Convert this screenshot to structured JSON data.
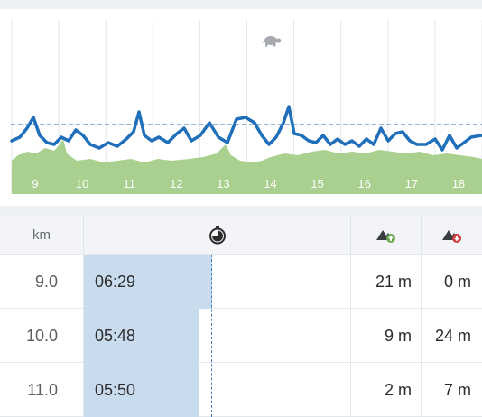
{
  "chart": {
    "km_labels": [
      "9",
      "10",
      "11",
      "12",
      "13",
      "14",
      "15",
      "16",
      "17",
      "18"
    ],
    "slow_icon": "turtle-icon",
    "colors": {
      "pace_line": "#1f6fba",
      "elevation_fill": "#a9d08f",
      "avg_line": "#2f6ea8",
      "grid": "#e4e6e9"
    }
  },
  "table": {
    "header": {
      "km_label": "km",
      "pace_icon": "stopwatch-icon",
      "ascent_icon": "mountain-up-icon",
      "descent_icon": "mountain-down-icon"
    },
    "rows": [
      {
        "km": "9.0",
        "pace": "06:29",
        "ascent": "21 m",
        "descent": "0 m"
      },
      {
        "km": "10.0",
        "pace": "05:48",
        "ascent": "9 m",
        "descent": "24 m"
      },
      {
        "km": "11.0",
        "pace": "05:50",
        "ascent": "2 m",
        "descent": "7 m"
      }
    ]
  }
}
